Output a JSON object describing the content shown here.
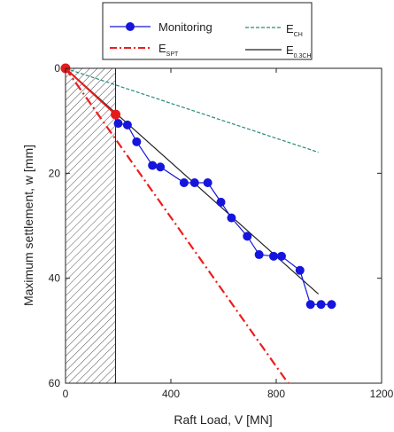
{
  "chart_data": {
    "type": "line",
    "xlabel": "Raft Load, V [MN]",
    "ylabel": "Maximum settlement, w [mm]",
    "xlim": [
      0,
      1200
    ],
    "ylim": [
      0,
      60
    ],
    "y_inverted": true,
    "x_ticks": [
      0,
      400,
      800,
      1200
    ],
    "y_ticks": [
      0,
      20,
      40,
      60
    ],
    "x_tick_labels": [
      "0",
      "400",
      "800",
      "1200"
    ],
    "y_tick_labels": [
      "0",
      "20",
      "40",
      "60"
    ],
    "grid": false,
    "legend_position": "top",
    "shaded_region": {
      "x_from": 0,
      "x_to": 190,
      "pattern": "hatched"
    },
    "series": [
      {
        "name": "Monitoring",
        "legend_label": "Monitoring",
        "style": "solid line with filled circle markers",
        "color": "#1515dd",
        "x": [
          200,
          235,
          270,
          330,
          360,
          450,
          490,
          540,
          590,
          630,
          690,
          735,
          790,
          820,
          890,
          930,
          970,
          1010
        ],
        "y": [
          10.5,
          10.8,
          14,
          18.5,
          18.8,
          21.8,
          21.8,
          21.8,
          25.5,
          28.5,
          32,
          35.5,
          35.8,
          35.8,
          38.5,
          45,
          45,
          45
        ]
      },
      {
        "name": "E_SPT",
        "legend_main": "E",
        "legend_sub": "SPT",
        "style": "dash-dot",
        "color": "#ee1c1c",
        "x": [
          0,
          845
        ],
        "y": [
          0,
          60
        ]
      },
      {
        "name": "E_CH",
        "legend_main": "E",
        "legend_sub": "CH",
        "style": "dashed",
        "color": "#2a8a7a",
        "x": [
          0,
          960
        ],
        "y": [
          0,
          16
        ]
      },
      {
        "name": "E_0.3CH",
        "legend_main": "E",
        "legend_sub": "0.3CH",
        "style": "solid",
        "color": "#222222",
        "x": [
          0,
          960
        ],
        "y": [
          0,
          43
        ]
      }
    ],
    "highlight_points": [
      {
        "x": 0,
        "y": 0,
        "color": "#e51b1b"
      },
      {
        "x": 190,
        "y": 8.8,
        "color": "#e51b1b"
      }
    ]
  }
}
